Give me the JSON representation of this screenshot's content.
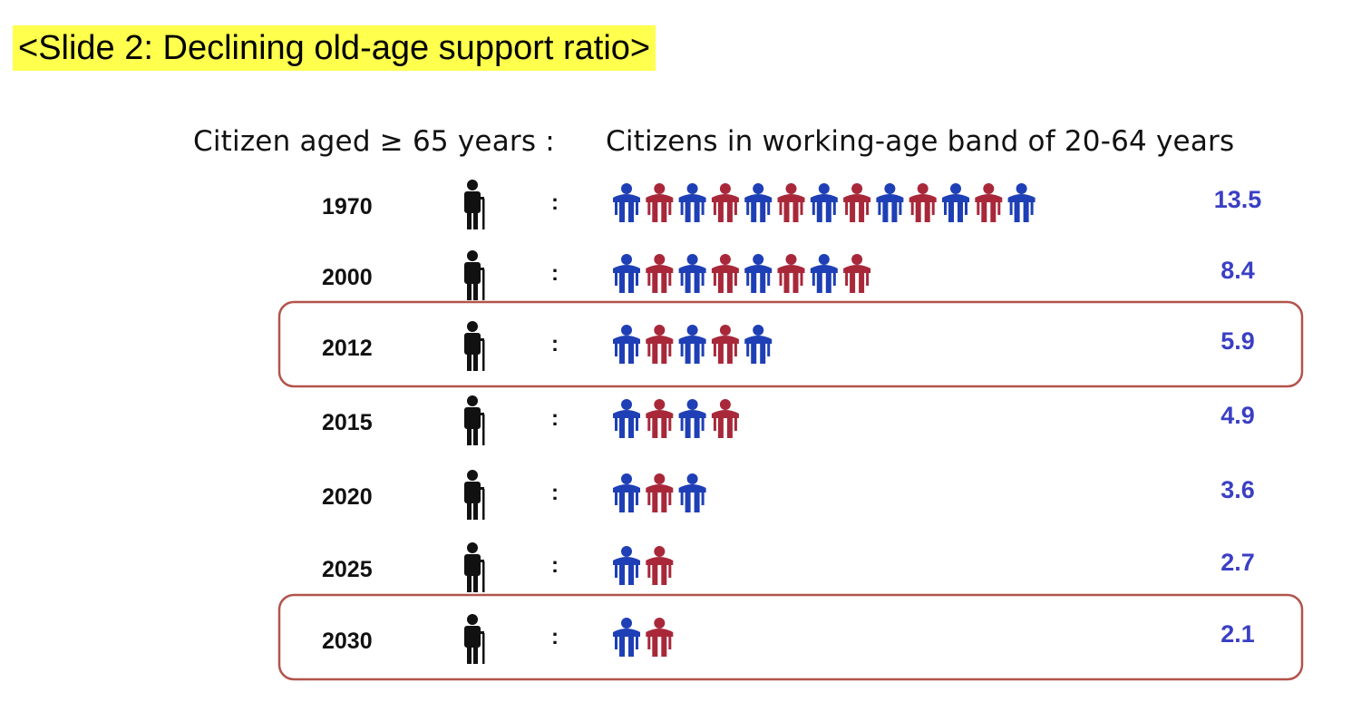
{
  "slide": {
    "title": "<Slide 2: Declining old-age support ratio>"
  },
  "header": {
    "elderly_label": "Citizen aged ≥ 65 years :",
    "working_label": "Citizens in working-age band of 20-64 years"
  },
  "colors": {
    "blue": "#1e3fb5",
    "red": "#a8283a",
    "elder": "#111111",
    "value_text": "#3a3fc4",
    "highlight_border": "#b2544c",
    "title_bg": "#ffff4d"
  },
  "icons": {
    "elder": "elderly-person-with-cane-icon",
    "worker": "working-age-person-icon"
  },
  "chart_data": {
    "type": "pictogram",
    "title": "Declining old-age support ratio",
    "separator": ":",
    "pattern": [
      "blue",
      "red"
    ],
    "rows": [
      {
        "year": "1970",
        "value": 13.5,
        "label": "13.5",
        "highlight": false
      },
      {
        "year": "2000",
        "value": 8.4,
        "label": "8.4",
        "highlight": false
      },
      {
        "year": "2012",
        "value": 5.9,
        "label": "5.9",
        "highlight": true
      },
      {
        "year": "2015",
        "value": 4.9,
        "label": "4.9",
        "highlight": false
      },
      {
        "year": "2020",
        "value": 3.6,
        "label": "3.6",
        "highlight": false
      },
      {
        "year": "2025",
        "value": 2.7,
        "label": "2.7",
        "highlight": false
      },
      {
        "year": "2030",
        "value": 2.1,
        "label": "2.1",
        "highlight": true
      }
    ]
  }
}
